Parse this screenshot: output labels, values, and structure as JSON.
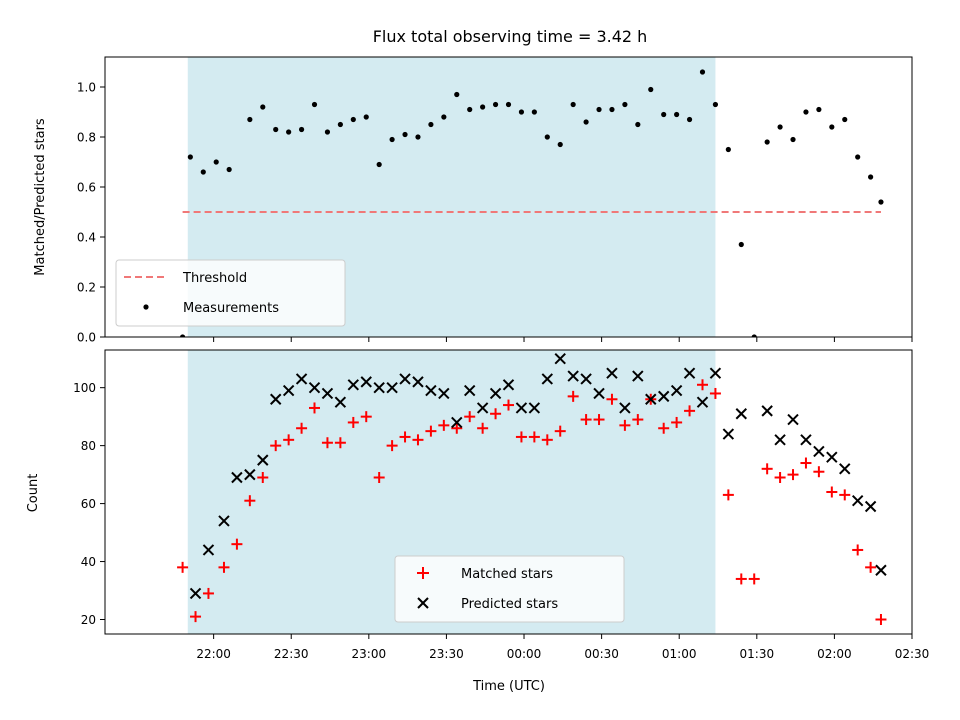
{
  "chart_data": [
    {
      "type": "scatter",
      "title": "Flux total observing time = 3.42 h",
      "xlabel": "",
      "ylabel": "Matched/Predicted stars",
      "ylim": [
        0,
        1.12
      ],
      "yticks": [
        "0.0",
        "0.2",
        "0.4",
        "0.6",
        "0.8",
        "1.0"
      ],
      "ytick_values": [
        0,
        0.2,
        0.4,
        0.6,
        0.8,
        1.0
      ],
      "xlim_minutes": [
        -42,
        270
      ],
      "shaded_span_minutes": [
        -10,
        194
      ],
      "shade_color": "#d4ebf1",
      "legend_position": "lower-left",
      "threshold": {
        "name": "Threshold",
        "value": 0.5,
        "x_range_minutes": [
          -12,
          258
        ],
        "color": "#f07878"
      },
      "series": [
        {
          "name": "Measurements",
          "color": "#000000",
          "marker": "dot",
          "x_minutes": [
            -12,
            -9,
            -4,
            1,
            6,
            14,
            19,
            24,
            29,
            34,
            39,
            44,
            49,
            54,
            59,
            64,
            69,
            74,
            79,
            84,
            89,
            94,
            99,
            104,
            109,
            114,
            119,
            124,
            129,
            134,
            139,
            144,
            149,
            154,
            159,
            164,
            169,
            174,
            179,
            184,
            189,
            194,
            199,
            204,
            209,
            214,
            219,
            224,
            229,
            234,
            239,
            244,
            249,
            254,
            258
          ],
          "y": [
            0.0,
            0.72,
            0.66,
            0.7,
            0.67,
            0.87,
            0.92,
            0.83,
            0.82,
            0.83,
            0.93,
            0.82,
            0.85,
            0.87,
            0.88,
            0.69,
            0.79,
            0.81,
            0.8,
            0.85,
            0.88,
            0.97,
            0.91,
            0.92,
            0.93,
            0.93,
            0.9,
            0.9,
            0.8,
            0.77,
            0.93,
            0.86,
            0.91,
            0.91,
            0.93,
            0.85,
            0.99,
            0.89,
            0.89,
            0.87,
            1.06,
            0.93,
            0.75,
            0.37,
            0.0,
            0.78,
            0.84,
            0.79,
            0.9,
            0.91,
            0.84,
            0.87,
            0.72,
            0.64,
            0.54
          ]
        }
      ]
    },
    {
      "type": "scatter",
      "title": "",
      "xlabel": "Time (UTC)",
      "ylabel": "Count",
      "ylim": [
        15,
        113
      ],
      "yticks": [
        "20",
        "40",
        "60",
        "80",
        "100"
      ],
      "ytick_values": [
        20,
        40,
        60,
        80,
        100
      ],
      "xlim_minutes": [
        -42,
        270
      ],
      "x_tick_minutes": [
        0,
        30,
        60,
        90,
        120,
        150,
        180,
        210,
        240,
        270
      ],
      "x_tick_labels": [
        "22:00",
        "22:30",
        "23:00",
        "23:30",
        "00:00",
        "00:30",
        "01:00",
        "01:30",
        "02:00",
        "02:30"
      ],
      "shaded_span_minutes": [
        -10,
        194
      ],
      "legend_position": "lower-center",
      "series": [
        {
          "name": "Matched stars",
          "color": "#ff0000",
          "marker": "plus",
          "x_minutes": [
            -12,
            -7,
            -2,
            4,
            9,
            14,
            19,
            24,
            29,
            34,
            39,
            44,
            49,
            54,
            59,
            64,
            69,
            74,
            79,
            84,
            89,
            94,
            99,
            104,
            109,
            114,
            119,
            124,
            129,
            134,
            139,
            144,
            149,
            154,
            159,
            164,
            169,
            174,
            179,
            184,
            189,
            194,
            199,
            204,
            209,
            214,
            219,
            224,
            229,
            234,
            239,
            244,
            249,
            254,
            258
          ],
          "y": [
            38,
            21,
            29,
            38,
            46,
            61,
            69,
            80,
            82,
            86,
            93,
            81,
            81,
            88,
            90,
            69,
            80,
            83,
            82,
            85,
            87,
            86,
            90,
            86,
            91,
            94,
            83,
            83,
            82,
            85,
            97,
            89,
            89,
            96,
            87,
            89,
            96,
            86,
            88,
            92,
            101,
            98,
            63,
            34,
            34,
            72,
            69,
            70,
            74,
            71,
            64,
            63,
            44,
            38,
            20
          ]
        },
        {
          "name": "Predicted stars",
          "color": "#000000",
          "marker": "x",
          "x_minutes": [
            -7,
            -2,
            4,
            9,
            14,
            19,
            24,
            29,
            34,
            39,
            44,
            49,
            54,
            59,
            64,
            69,
            74,
            79,
            84,
            89,
            94,
            99,
            104,
            109,
            114,
            119,
            124,
            129,
            134,
            139,
            144,
            149,
            154,
            159,
            164,
            169,
            174,
            179,
            184,
            189,
            194,
            199,
            204,
            214,
            219,
            224,
            229,
            234,
            239,
            244,
            249,
            254,
            258
          ],
          "y": [
            29,
            44,
            54,
            69,
            70,
            75,
            96,
            99,
            103,
            100,
            98,
            95,
            101,
            102,
            100,
            100,
            103,
            102,
            99,
            98,
            88,
            99,
            93,
            98,
            101,
            93,
            93,
            103,
            110,
            104,
            103,
            98,
            105,
            93,
            104,
            96,
            97,
            99,
            105,
            95,
            105,
            84,
            91,
            92,
            82,
            89,
            82,
            78,
            76,
            72,
            61,
            59,
            37
          ]
        }
      ]
    }
  ]
}
